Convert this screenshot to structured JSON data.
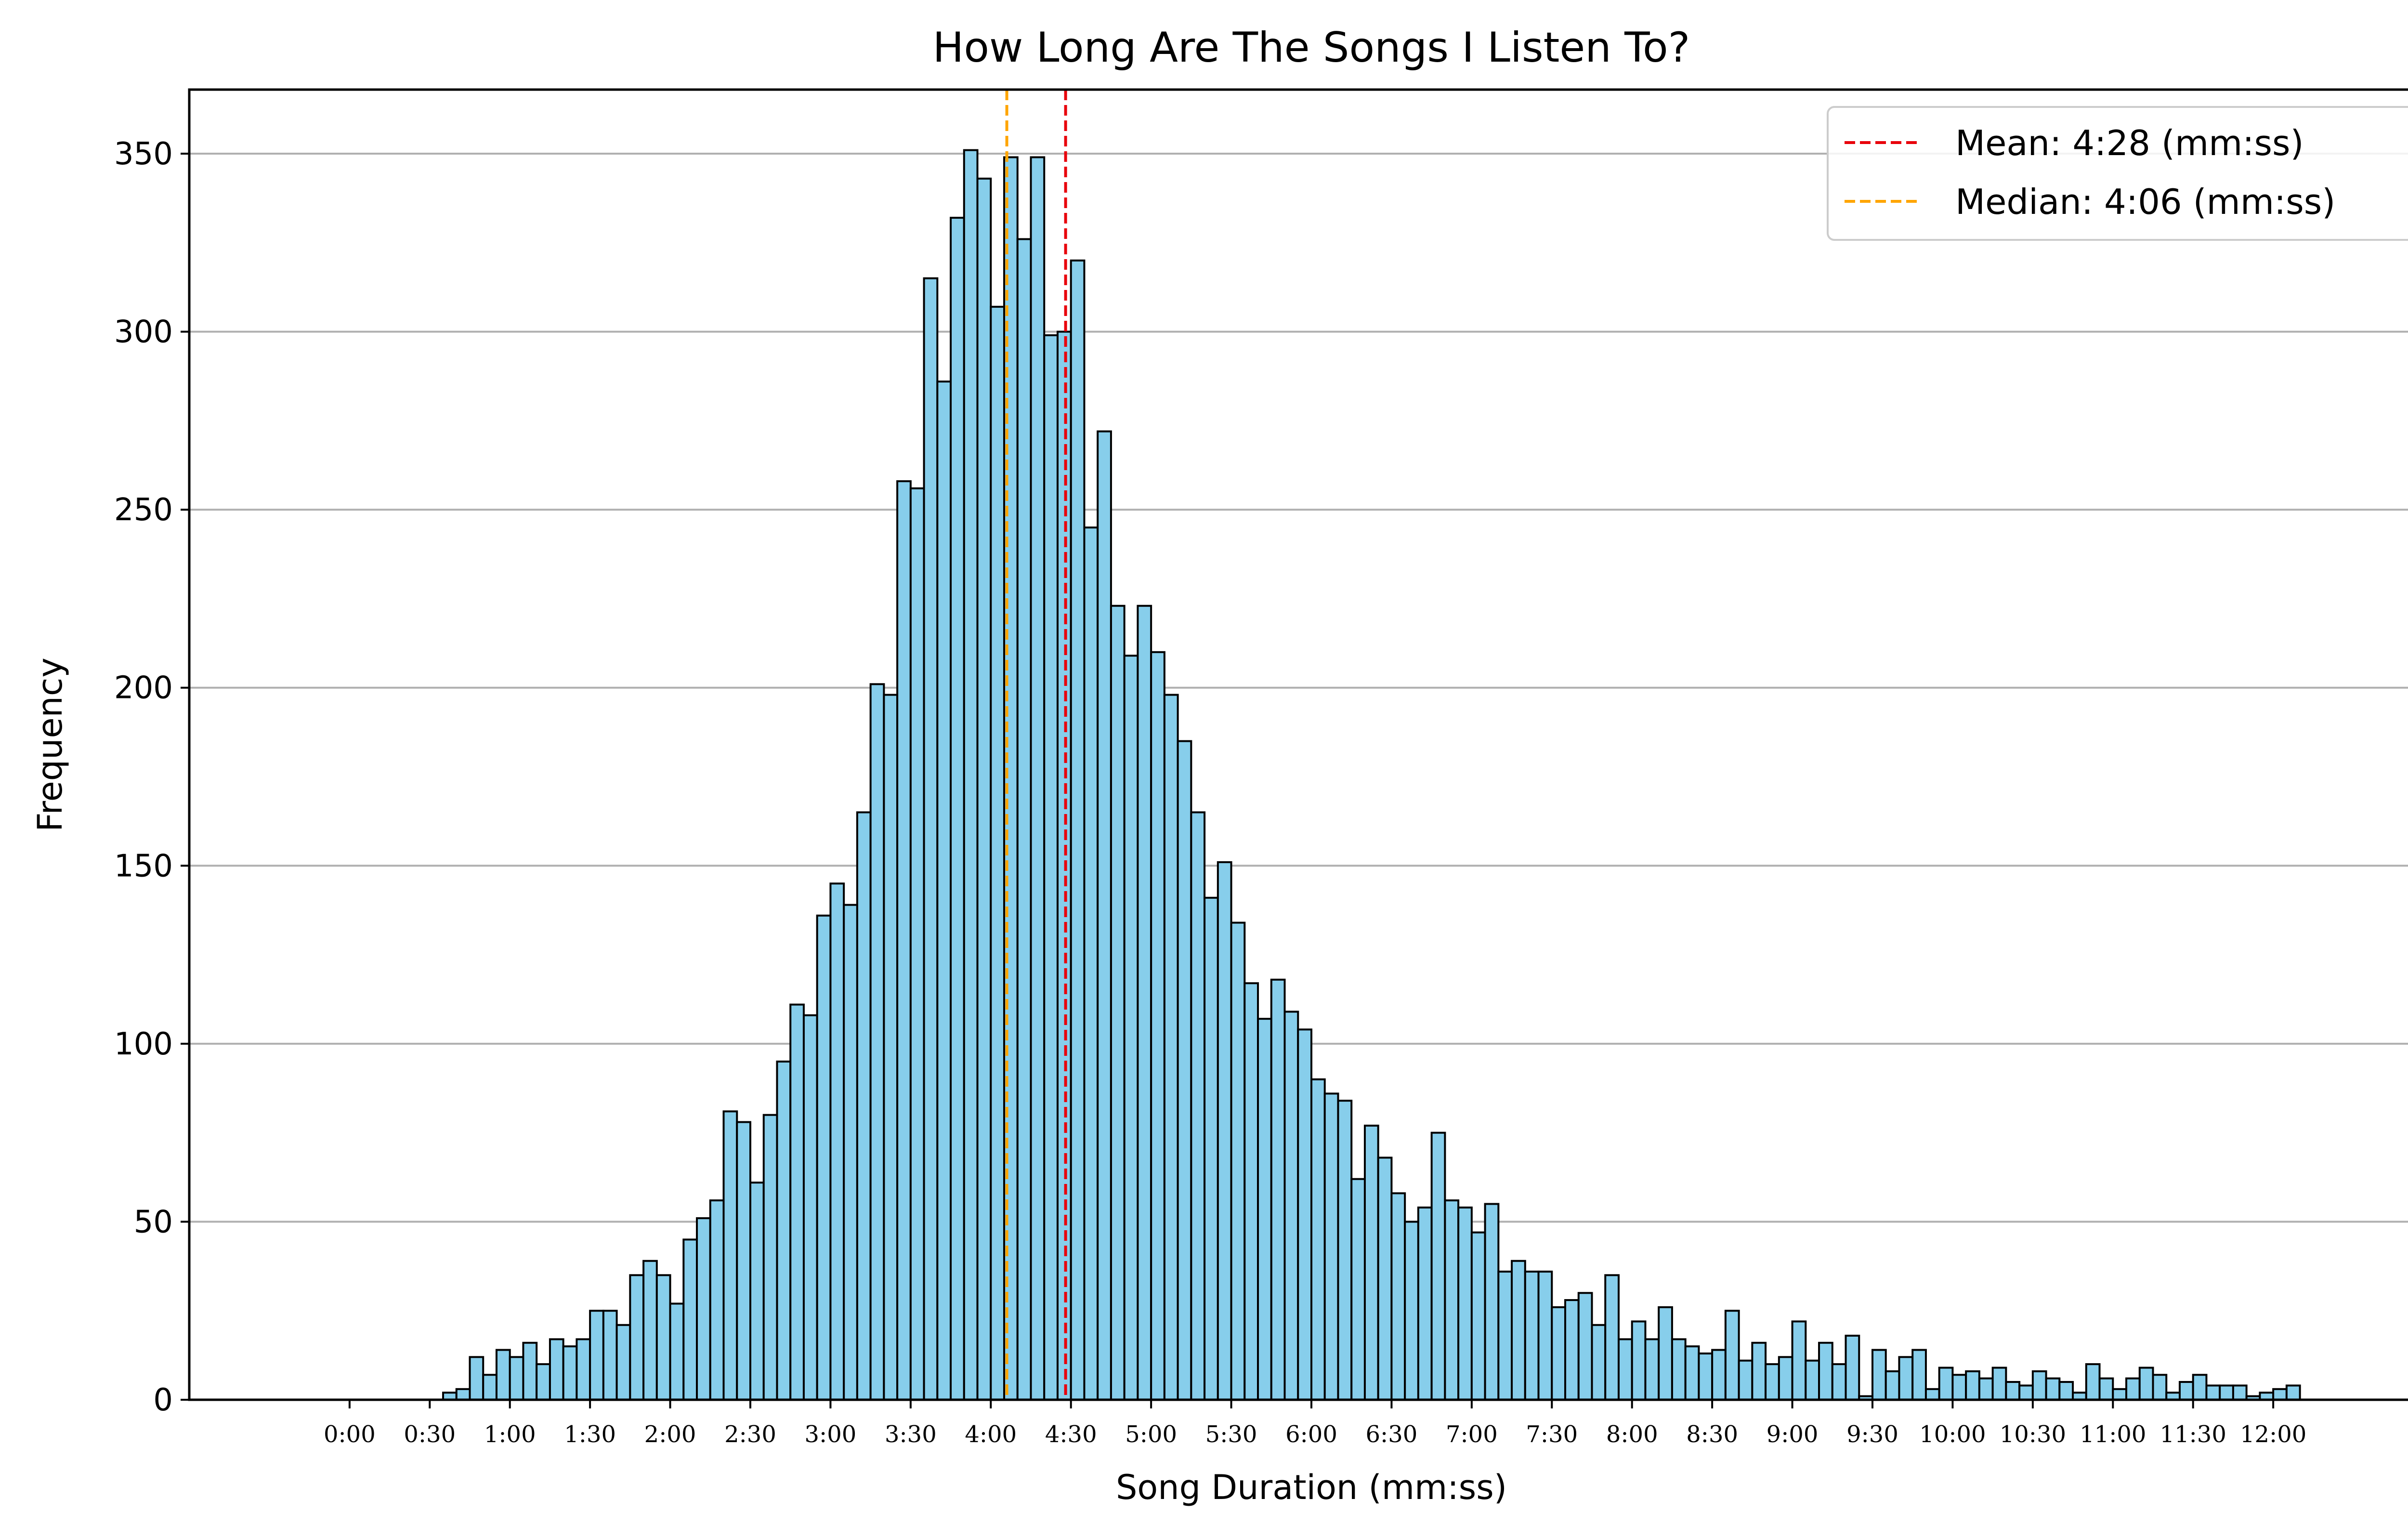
{
  "chart_data": {
    "type": "bar",
    "title": "How Long Are The Songs I Listen To?",
    "xlabel": "Song Duration (mm:ss)",
    "ylabel": "Frequency",
    "bin_width_seconds": 5,
    "x_start_seconds": 0,
    "xlim_seconds": [
      -60,
      780
    ],
    "ylim": [
      0,
      368
    ],
    "grid": "y",
    "legend_placement": "top-right",
    "bar_fill_color": "#87ceeb",
    "bar_edge_color": "#000000",
    "x_ticks": [
      "0:00",
      "0:30",
      "1:00",
      "1:30",
      "2:00",
      "2:30",
      "3:00",
      "3:30",
      "4:00",
      "4:30",
      "5:00",
      "5:30",
      "6:00",
      "6:30",
      "7:00",
      "7:30",
      "8:00",
      "8:30",
      "9:00",
      "9:30",
      "10:00",
      "10:30",
      "11:00",
      "11:30",
      "12:00"
    ],
    "x_tick_seconds": [
      0,
      30,
      60,
      90,
      120,
      150,
      180,
      210,
      240,
      270,
      300,
      330,
      360,
      390,
      420,
      450,
      480,
      510,
      540,
      570,
      600,
      630,
      660,
      690,
      720
    ],
    "y_ticks": [
      0,
      50,
      100,
      150,
      200,
      250,
      300,
      350
    ],
    "values": [
      0,
      0,
      0,
      0,
      0,
      0,
      0,
      2,
      3,
      12,
      7,
      14,
      12,
      16,
      10,
      17,
      15,
      17,
      25,
      25,
      21,
      35,
      39,
      35,
      27,
      45,
      51,
      56,
      81,
      78,
      61,
      80,
      95,
      111,
      108,
      136,
      145,
      139,
      165,
      201,
      198,
      258,
      256,
      315,
      286,
      332,
      351,
      343,
      307,
      349,
      326,
      349,
      299,
      300,
      320,
      245,
      272,
      223,
      209,
      223,
      210,
      198,
      185,
      165,
      141,
      151,
      134,
      117,
      107,
      118,
      109,
      104,
      90,
      86,
      84,
      62,
      77,
      68,
      58,
      50,
      54,
      75,
      56,
      54,
      47,
      55,
      36,
      39,
      36,
      36,
      26,
      28,
      30,
      21,
      35,
      17,
      22,
      17,
      26,
      17,
      15,
      13,
      14,
      25,
      11,
      16,
      10,
      12,
      22,
      11,
      16,
      10,
      18,
      1,
      14,
      8,
      12,
      14,
      3,
      9,
      7,
      8,
      6,
      9,
      5,
      4,
      8,
      6,
      5,
      2,
      10,
      6,
      3,
      6,
      9,
      7,
      2,
      5,
      7,
      4,
      4,
      4,
      1,
      2,
      3,
      4
    ],
    "reference_lines": [
      {
        "name": "Mean: 4:28 (mm:ss)",
        "x_seconds": 268,
        "color": "#e8000b"
      },
      {
        "name": "Median: 4:06 (mm:ss)",
        "x_seconds": 246,
        "color": "#ffa500"
      }
    ]
  }
}
